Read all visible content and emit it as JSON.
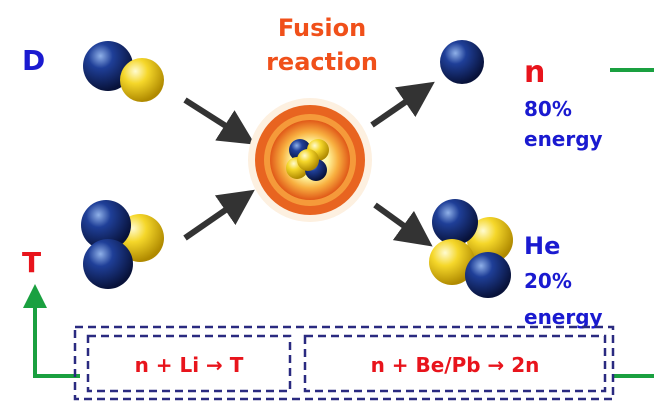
{
  "labels": {
    "d": "D",
    "t": "T",
    "fusion": [
      "Fusion",
      "reaction"
    ],
    "n": {
      "name": "n",
      "share": "80%",
      "unit": "energy"
    },
    "he": {
      "name": "He",
      "share": "20%",
      "unit": "energy"
    }
  },
  "reactions": [
    "n + Li → T",
    "n + Be/Pb → 2n"
  ]
}
